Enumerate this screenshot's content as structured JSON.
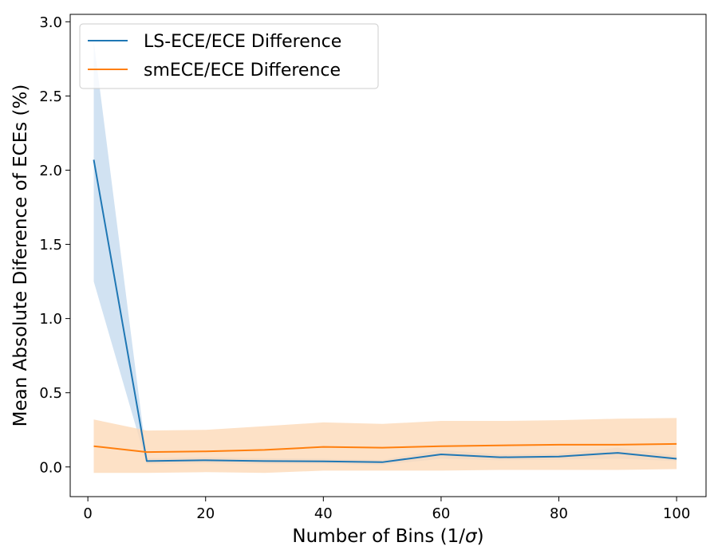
{
  "chart_data": {
    "type": "line",
    "title": "",
    "xlabel": "Number of Bins (1/",
    "xlabel_symbol": "σ",
    "xlabel_suffix": ")",
    "ylabel": "Mean Absolute Diference of ECEs (%)",
    "xlim": [
      -3,
      105
    ],
    "ylim": [
      -0.2,
      3.05
    ],
    "xticks": [
      0,
      20,
      40,
      60,
      80,
      100
    ],
    "yticks": [
      0.0,
      0.5,
      1.0,
      1.5,
      2.0,
      2.5,
      3.0
    ],
    "grid": false,
    "legend_position": "upper-left",
    "x": [
      1,
      10,
      20,
      30,
      40,
      50,
      60,
      70,
      80,
      90,
      100
    ],
    "series": [
      {
        "name": "LS-ECE/ECE Difference",
        "color": "#1f77b4",
        "band_color": "#c6dbef",
        "values": [
          2.07,
          0.04,
          0.045,
          0.04,
          0.038,
          0.032,
          0.085,
          0.065,
          0.07,
          0.095,
          0.055
        ],
        "lower": [
          1.25,
          0.02,
          0.025,
          0.02,
          0.02,
          0.015,
          0.055,
          0.045,
          0.05,
          0.055,
          0.04
        ],
        "upper": [
          2.87,
          0.06,
          0.065,
          0.06,
          0.055,
          0.048,
          0.115,
          0.085,
          0.09,
          0.13,
          0.075
        ]
      },
      {
        "name": "smECE/ECE Difference",
        "color": "#ff7f0e",
        "band_color": "#fdd9b8",
        "values": [
          0.14,
          0.1,
          0.105,
          0.115,
          0.135,
          0.13,
          0.14,
          0.145,
          0.15,
          0.15,
          0.155
        ],
        "lower": [
          -0.04,
          -0.04,
          -0.035,
          -0.04,
          -0.025,
          -0.025,
          -0.025,
          -0.02,
          -0.02,
          -0.02,
          -0.015
        ],
        "upper": [
          0.32,
          0.245,
          0.25,
          0.275,
          0.3,
          0.29,
          0.31,
          0.31,
          0.315,
          0.325,
          0.33
        ]
      }
    ]
  }
}
